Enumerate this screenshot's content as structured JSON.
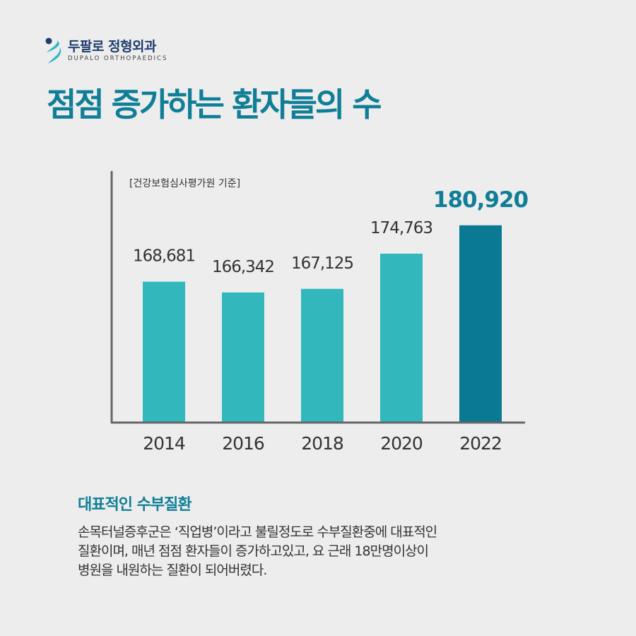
{
  "brand": {
    "name_ko": "두팔로 정형외과",
    "name_en": "DUPALO ORTHOPAEDICS"
  },
  "title": "점점 증가하는 환자들의 수",
  "colors": {
    "bar": "#32b8bc",
    "highlight_bar": "#0a7a94",
    "title": "#0f7e96",
    "axis": "#666666"
  },
  "chart_data": {
    "type": "bar",
    "source_note": "[건강보험심사평가원 기준]",
    "categories": [
      "2014",
      "2016",
      "2018",
      "2020",
      "2022"
    ],
    "values": [
      168681,
      166342,
      167125,
      174763,
      180920
    ],
    "value_labels": [
      "168,681",
      "166,342",
      "167,125",
      "174,763",
      "180,920"
    ],
    "highlight_index": 4,
    "ylim": [
      138100,
      192700
    ],
    "grid": false
  },
  "section": {
    "heading": "대표적인 수부질환",
    "lines": [
      "손목터널증후군은 ‘직업병’이라고 불릴정도로 수부질환중에 대표적인",
      "질환이며, 매년 점점 환자들이 증가하고있고,  요 근래 18만명이상이",
      "병원을 내원하는 질환이 되어버렸다."
    ]
  }
}
